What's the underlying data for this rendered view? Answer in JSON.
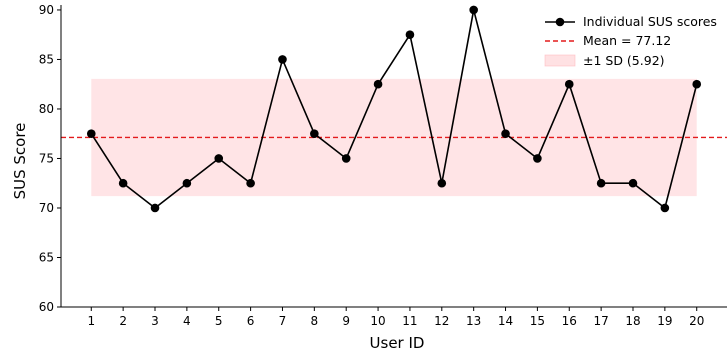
{
  "chart_data": {
    "type": "line",
    "xlabel": "User ID",
    "ylabel": "SUS Score",
    "x": [
      1,
      2,
      3,
      4,
      5,
      6,
      7,
      8,
      9,
      10,
      11,
      12,
      13,
      14,
      15,
      16,
      17,
      18,
      19,
      20
    ],
    "xticks": [
      "1",
      "2",
      "3",
      "4",
      "5",
      "6",
      "7",
      "8",
      "9",
      "10",
      "11",
      "12",
      "13",
      "14",
      "15",
      "16",
      "17",
      "18",
      "19",
      "20"
    ],
    "ylim": [
      60,
      90
    ],
    "yticks": [
      "60",
      "65",
      "70",
      "75",
      "80",
      "85",
      "90"
    ],
    "series": [
      {
        "name": "Individual SUS scores",
        "values": [
          77.5,
          72.5,
          70,
          72.5,
          75,
          72.5,
          85,
          77.5,
          75,
          82.5,
          87.5,
          72.5,
          90,
          77.5,
          75,
          82.5,
          72.5,
          72.5,
          70,
          82.5
        ],
        "color": "#000000",
        "marker": "circle"
      }
    ],
    "mean": {
      "label": "Mean = 77.12",
      "value": 77.12,
      "color": "#e31a1c",
      "style": "dashed"
    },
    "sd_band": {
      "label": "±1 SD (5.92)",
      "sd": 5.92,
      "lower": 71.2,
      "upper": 83.04,
      "color": "#ffb3b8"
    },
    "legend_position": "top-right",
    "grid": false
  }
}
